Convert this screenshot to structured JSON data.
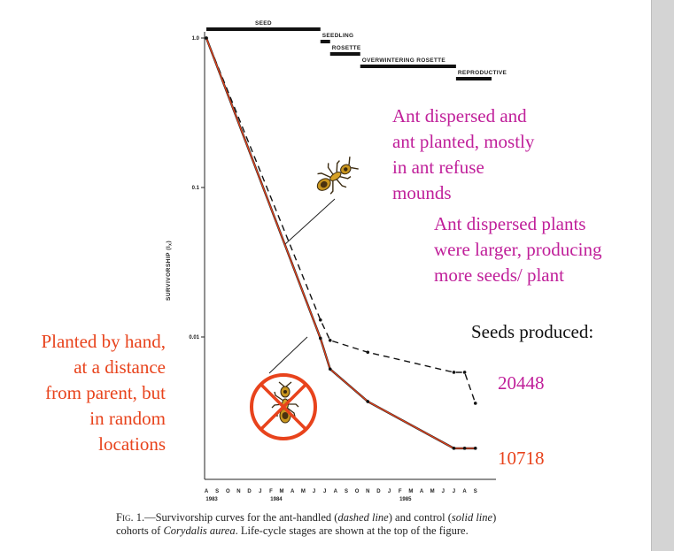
{
  "chart_data": {
    "type": "line",
    "ylabel": "SURVIVORSHIP (l",
    "ylabel_sub": "x",
    "ylabel_close": ")",
    "yscale": "log",
    "yticks": [
      {
        "value": 1.0,
        "label": "1.0"
      },
      {
        "value": 0.1,
        "label": "0.1"
      },
      {
        "value": 0.01,
        "label": "0.01"
      }
    ],
    "months": [
      "A",
      "S",
      "O",
      "N",
      "D",
      "J",
      "F",
      "M",
      "A",
      "M",
      "J",
      "J",
      "A",
      "S",
      "O",
      "N",
      "D",
      "J",
      "F",
      "M",
      "A",
      "M",
      "J",
      "J",
      "A",
      "S"
    ],
    "years": [
      {
        "label": "1983",
        "index": 0.5
      },
      {
        "label": "1984",
        "index": 6.5
      },
      {
        "label": "1985",
        "index": 18.5
      }
    ],
    "stages": [
      {
        "label": "SEED",
        "start": 0,
        "end": 10.6,
        "level": 0
      },
      {
        "label": "SEEDLING",
        "start": 10.6,
        "end": 11.5,
        "level": 1
      },
      {
        "label": "ROSETTE",
        "start": 11.5,
        "end": 14.3,
        "level": 2
      },
      {
        "label": "OVERWINTERING ROSETTE",
        "start": 14.3,
        "end": 23.2,
        "level": 3
      },
      {
        "label": "REPRODUCTIVE",
        "start": 23.2,
        "end": 26.5,
        "level": 4
      }
    ],
    "series": [
      {
        "style": "dashed",
        "points": [
          [
            0,
            1.0
          ],
          [
            10.6,
            0.013
          ],
          [
            11.5,
            0.0095
          ],
          [
            15,
            0.0079
          ],
          [
            23,
            0.0058
          ],
          [
            24,
            0.0058
          ],
          [
            25,
            0.0036
          ]
        ]
      },
      {
        "style": "solid",
        "points": [
          [
            0,
            1.0
          ],
          [
            10.6,
            0.0098
          ],
          [
            11.5,
            0.0061
          ],
          [
            15,
            0.0037
          ],
          [
            23,
            0.0018
          ],
          [
            24,
            0.0018
          ],
          [
            25,
            0.0018
          ]
        ]
      }
    ]
  },
  "annotations": {
    "ant_planted": [
      "Ant dispersed and",
      "ant planted, mostly",
      "in ant refuse",
      "mounds"
    ],
    "larger_plants": [
      "Ant dispersed plants",
      "were larger, producing",
      "more seeds/ plant"
    ],
    "seeds_produced_label": "Seeds produced:",
    "seeds_ant": "20448",
    "seeds_hand": "10718",
    "hand_planted": [
      "Planted by hand,",
      "at a distance",
      "from parent, but",
      "in random",
      "locations"
    ]
  },
  "caption": {
    "label": "Fig. 1.",
    "text1": "—Survivorship curves for the ant-handled (",
    "dashed": "dashed line",
    "text2": ") and control (",
    "solid": "solid line",
    "text3": ")",
    "text4": "cohorts of ",
    "species": "Corydalis aurea",
    "text5": ". Life-cycle stages are shown at the top of the figure."
  },
  "colors": {
    "magenta": "#c0209a",
    "orange": "#e8431c",
    "solid_line": "#e8431c",
    "dashed_line": "#111111",
    "no_symbol": "#e8431c"
  }
}
